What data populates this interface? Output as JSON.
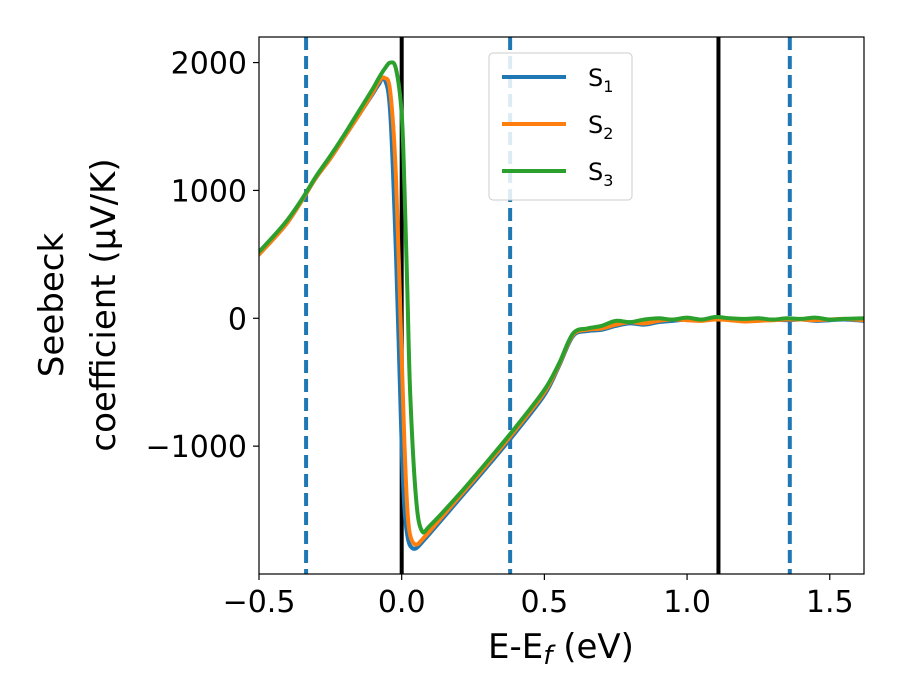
{
  "chart_data": {
    "type": "line",
    "xlabel_main": "E-E",
    "xlabel_sub": "f",
    "xlabel_unit": " (eV)",
    "ylabel_line1": "Seebeck",
    "ylabel_line2": "coefficient  (μV/K)",
    "xlim": [
      -0.5,
      1.62
    ],
    "ylim": [
      -2000,
      2200
    ],
    "x_ticks": [
      -0.5,
      0.0,
      0.5,
      1.0,
      1.5
    ],
    "x_tick_labels": [
      "−0.5",
      "0.0",
      "0.5",
      "1.0",
      "1.5"
    ],
    "y_ticks": [
      -1000,
      0,
      1000,
      2000
    ],
    "y_tick_labels": [
      "−1000",
      "0",
      "1000",
      "2000"
    ],
    "vlines_solid": [
      0.0,
      1.11
    ],
    "vlines_dashed": [
      -0.335,
      0.38,
      1.36
    ],
    "legend": {
      "placement": "top-center",
      "entries": [
        {
          "main": "S",
          "sub": "1",
          "color": "#1f77b4"
        },
        {
          "main": "S",
          "sub": "2",
          "color": "#ff7f0e"
        },
        {
          "main": "S",
          "sub": "3",
          "color": "#2ca02c"
        }
      ]
    },
    "series": [
      {
        "name": "S1",
        "color": "#1f77b4",
        "x": [
          -0.5,
          -0.45,
          -0.4,
          -0.35,
          -0.3,
          -0.25,
          -0.2,
          -0.15,
          -0.1,
          -0.08,
          -0.06,
          -0.04,
          -0.02,
          0.0,
          0.01,
          0.02,
          0.03,
          0.05,
          0.08,
          0.1,
          0.2,
          0.3,
          0.4,
          0.5,
          0.55,
          0.6,
          0.65,
          0.7,
          0.75,
          0.8,
          0.85,
          0.9,
          0.95,
          1.0,
          1.05,
          1.1,
          1.15,
          1.2,
          1.25,
          1.3,
          1.35,
          1.4,
          1.45,
          1.5,
          1.55,
          1.62
        ],
        "y": [
          500,
          620,
          750,
          920,
          1100,
          1250,
          1420,
          1590,
          1760,
          1830,
          1870,
          1600,
          500,
          -1000,
          -1500,
          -1700,
          -1780,
          -1800,
          -1730,
          -1680,
          -1420,
          -1160,
          -890,
          -600,
          -380,
          -140,
          -100,
          -90,
          -60,
          -40,
          -50,
          -30,
          -20,
          -10,
          -15,
          -5,
          -10,
          -20,
          -15,
          -10,
          -15,
          -10,
          -20,
          -15,
          -10,
          -20
        ]
      },
      {
        "name": "S2",
        "color": "#ff7f0e",
        "x": [
          -0.5,
          -0.45,
          -0.4,
          -0.35,
          -0.3,
          -0.25,
          -0.2,
          -0.15,
          -0.1,
          -0.08,
          -0.06,
          -0.04,
          -0.02,
          0.0,
          0.01,
          0.02,
          0.03,
          0.05,
          0.08,
          0.1,
          0.2,
          0.3,
          0.4,
          0.5,
          0.55,
          0.6,
          0.65,
          0.7,
          0.75,
          0.8,
          0.85,
          0.9,
          0.95,
          1.0,
          1.05,
          1.1,
          1.15,
          1.2,
          1.25,
          1.3,
          1.35,
          1.4,
          1.45,
          1.5,
          1.55,
          1.62
        ],
        "y": [
          500,
          620,
          750,
          920,
          1100,
          1250,
          1420,
          1590,
          1770,
          1850,
          1880,
          1770,
          1100,
          -300,
          -1000,
          -1500,
          -1700,
          -1770,
          -1710,
          -1660,
          -1400,
          -1140,
          -870,
          -580,
          -370,
          -130,
          -90,
          -80,
          -50,
          -30,
          -40,
          -20,
          -10,
          -15,
          -20,
          -10,
          -15,
          -25,
          -20,
          -15,
          -10,
          -10,
          -15,
          -10,
          -5,
          -15
        ]
      },
      {
        "name": "S3",
        "color": "#2ca02c",
        "x": [
          -0.5,
          -0.45,
          -0.4,
          -0.35,
          -0.3,
          -0.25,
          -0.2,
          -0.15,
          -0.1,
          -0.08,
          -0.06,
          -0.04,
          -0.02,
          0.0,
          0.01,
          0.02,
          0.03,
          0.05,
          0.07,
          0.1,
          0.2,
          0.3,
          0.4,
          0.5,
          0.55,
          0.6,
          0.65,
          0.7,
          0.75,
          0.8,
          0.85,
          0.9,
          0.95,
          1.0,
          1.05,
          1.1,
          1.15,
          1.2,
          1.25,
          1.3,
          1.35,
          1.4,
          1.45,
          1.5,
          1.55,
          1.62
        ],
        "y": [
          520,
          640,
          770,
          930,
          1110,
          1270,
          1440,
          1620,
          1800,
          1880,
          1950,
          2000,
          1950,
          1600,
          1000,
          200,
          -600,
          -1400,
          -1660,
          -1620,
          -1380,
          -1120,
          -850,
          -560,
          -360,
          -120,
          -80,
          -60,
          -20,
          -30,
          -10,
          0,
          -10,
          5,
          -10,
          10,
          0,
          -5,
          0,
          -10,
          0,
          -5,
          5,
          -10,
          -5,
          0
        ]
      }
    ]
  }
}
